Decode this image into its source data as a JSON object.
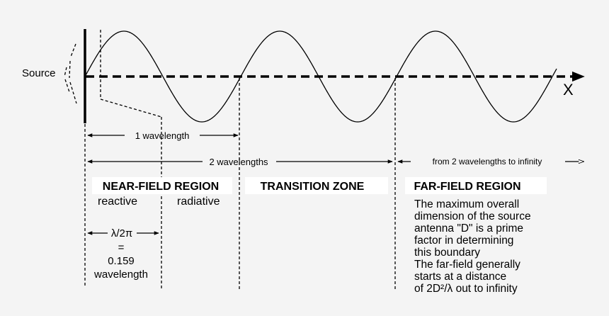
{
  "labels": {
    "source": "Source",
    "axis": "X",
    "one_wavelength": "1 wavelength",
    "two_wavelengths": "2 wavelengths",
    "from_two_to_infinity": "from 2 wavelengths to infinity",
    "near_field_region": "NEAR-FIELD REGION",
    "reactive": "reactive",
    "radiative": "radiative",
    "transition_zone": "TRANSITION ZONE",
    "far_field_region": "FAR-FIELD REGION",
    "lambda_over_2pi": "λ/2π",
    "equals": "=",
    "value": "0.159",
    "wavelength_unit": "wavelength"
  },
  "far_field_note": [
    "The maximum overall",
    "dimension of the source",
    "antenna \"D\" is a prime",
    "factor in determining",
    "this boundary",
    "The far-field generally",
    "starts at a distance",
    "of 2D²/λ out to infinity"
  ]
}
